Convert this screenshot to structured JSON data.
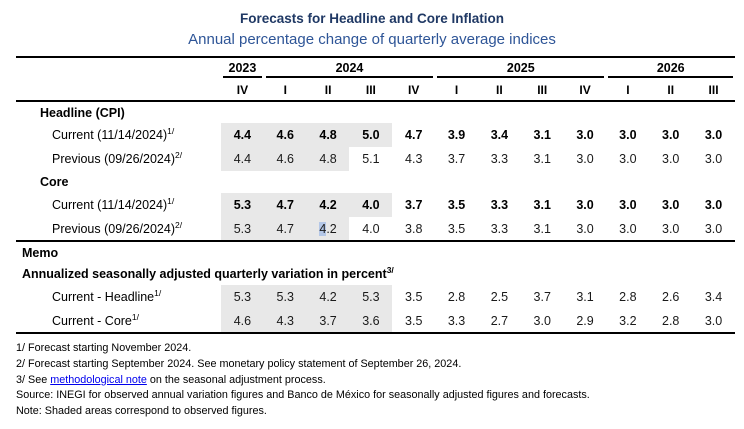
{
  "title": "Forecasts for Headline and Core Inflation",
  "subtitle": "Annual percentage change of quarterly average indices",
  "colors": {
    "title": "#1f3864",
    "subtitle": "#2e5597",
    "rule": "#000000",
    "shaded_cell": "#e8e8e8",
    "text_selection": "#b4c7e7",
    "link": "#0000ee"
  },
  "table": {
    "year_groups": [
      {
        "label": "2023",
        "span": 1
      },
      {
        "label": "2024",
        "span": 4
      },
      {
        "label": "2025",
        "span": 4
      },
      {
        "label": "2026",
        "span": 3
      }
    ],
    "quarters": [
      "IV",
      "I",
      "II",
      "III",
      "IV",
      "I",
      "II",
      "III",
      "IV",
      "I",
      "II",
      "III"
    ],
    "sections": [
      {
        "heading": "Headline (CPI)",
        "rows": [
          {
            "label": "Current (11/14/2024)",
            "sup": "1/",
            "bold": true,
            "shaded_count": 4,
            "values": [
              "4.4",
              "4.6",
              "4.8",
              "5.0",
              "4.7",
              "3.9",
              "3.4",
              "3.1",
              "3.0",
              "3.0",
              "3.0",
              "3.0"
            ]
          },
          {
            "label": "Previous (09/26/2024)",
            "sup": "2/",
            "bold": false,
            "shaded_count": 3,
            "values": [
              "4.4",
              "4.6",
              "4.8",
              "5.1",
              "4.3",
              "3.7",
              "3.3",
              "3.1",
              "3.0",
              "3.0",
              "3.0",
              "3.0"
            ]
          }
        ]
      },
      {
        "heading": "Core",
        "rows": [
          {
            "label": "Current (11/14/2024)",
            "sup": "1/",
            "bold": true,
            "shaded_count": 4,
            "values": [
              "5.3",
              "4.7",
              "4.2",
              "4.0",
              "3.7",
              "3.5",
              "3.3",
              "3.1",
              "3.0",
              "3.0",
              "3.0",
              "3.0"
            ]
          },
          {
            "label": "Previous (09/26/2024)",
            "sup": "2/",
            "bold": false,
            "shaded_count": 3,
            "highlight": {
              "col": 2,
              "prefix_chars": 1
            },
            "values": [
              "5.3",
              "4.7",
              "4.2",
              "4.0",
              "3.8",
              "3.5",
              "3.3",
              "3.1",
              "3.0",
              "3.0",
              "3.0",
              "3.0"
            ]
          }
        ]
      }
    ],
    "memo": {
      "headings": [
        {
          "text": "Memo",
          "sup": ""
        },
        {
          "text": "Annualized seasonally adjusted quarterly variation in percent",
          "sup": "3/"
        }
      ],
      "rows": [
        {
          "label": "Current - Headline",
          "sup": "1/",
          "bold": false,
          "shaded_count": 4,
          "values": [
            "5.3",
            "5.3",
            "4.2",
            "5.3",
            "3.5",
            "2.8",
            "2.5",
            "3.7",
            "3.1",
            "2.8",
            "2.6",
            "3.4"
          ]
        },
        {
          "label": "Current - Core",
          "sup": "1/",
          "bold": false,
          "shaded_count": 4,
          "values": [
            "4.6",
            "4.3",
            "3.7",
            "3.6",
            "3.5",
            "3.3",
            "2.7",
            "3.0",
            "2.9",
            "3.2",
            "2.8",
            "3.0"
          ]
        }
      ]
    }
  },
  "footnotes": {
    "line1": "1/ Forecast starting November 2024.",
    "line2": "2/ Forecast starting September 2024. See monetary policy statement of September 26, 2024.",
    "line3_pre": "3/ See ",
    "line3_link": "methodological note",
    "line3_post": " on the seasonal adjustment process.",
    "source": "Source: INEGI for observed annual variation figures and Banco de México for seasonally adjusted figures and forecasts.",
    "note": "Note: Shaded areas correspond to observed figures."
  }
}
